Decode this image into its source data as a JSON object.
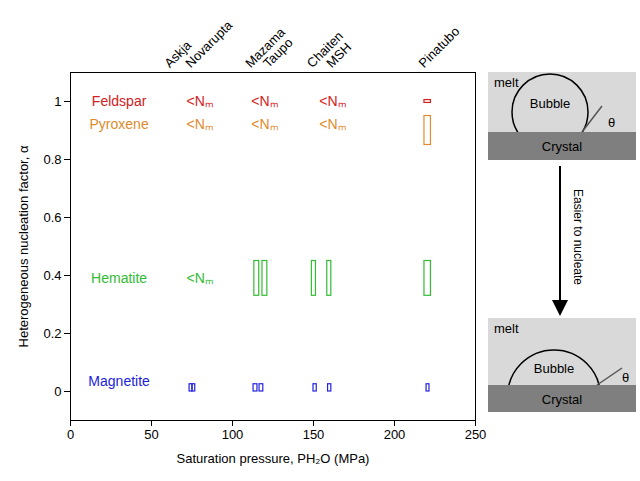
{
  "chart_data": {
    "type": "range_boxes",
    "xlabel": "Saturation pressure, PH₂O (MPa)",
    "ylabel": "Heterogeneous nucleation factor, α",
    "xlim": [
      0,
      250
    ],
    "xticks": [
      0,
      50,
      100,
      150,
      200,
      250
    ],
    "ylim": [
      -0.1,
      1.1
    ],
    "yticks": [
      0,
      0.2,
      0.4,
      0.6,
      0.8,
      1
    ],
    "grid": false,
    "volcanoes": {
      "names": [
        "Askja",
        "Novarupta",
        "Mazama",
        "Taupo",
        "Chaiten",
        "MSH",
        "Pinatubo"
      ],
      "x": [
        60,
        73,
        110,
        121,
        148,
        160,
        217
      ]
    },
    "series": [
      {
        "name": "Feldspar",
        "color": "#d42020",
        "label_x": 30,
        "label_y": 1.0,
        "boxes": [
          {
            "x": [
              218.5,
              222.5
            ],
            "y": [
              0.995,
              1.005
            ]
          }
        ],
        "below_detection": {
          "label": "<Nₘ",
          "x": [
            80,
            120,
            162
          ],
          "y": 1.0
        }
      },
      {
        "name": "Pyroxene",
        "color": "#e08a2c",
        "label_x": 30,
        "label_y": 0.92,
        "boxes": [
          {
            "x": [
              218.5,
              222.5
            ],
            "y": [
              0.85,
              0.95
            ]
          }
        ],
        "below_detection": {
          "label": "<Nₘ",
          "x": [
            80,
            120,
            162
          ],
          "y": 0.92
        }
      },
      {
        "name": "Hematite",
        "color": "#33bb33",
        "label_x": 30,
        "label_y": 0.39,
        "boxes": [
          {
            "x": [
              113.5,
              116.5
            ],
            "y": [
              0.33,
              0.45
            ]
          },
          {
            "x": [
              118.5,
              121.5
            ],
            "y": [
              0.33,
              0.45
            ]
          },
          {
            "x": [
              149,
              151.5
            ],
            "y": [
              0.33,
              0.45
            ]
          },
          {
            "x": [
              158.5,
              161
            ],
            "y": [
              0.33,
              0.45
            ]
          },
          {
            "x": [
              218.5,
              222.5
            ],
            "y": [
              0.33,
              0.45
            ]
          }
        ],
        "below_detection": {
          "label": "<Nₘ",
          "x": [
            80
          ],
          "y": 0.39
        }
      },
      {
        "name": "Magnetite",
        "color": "#2222dd",
        "label_x": 30,
        "label_y": 0.035,
        "boxes": [
          {
            "x": [
              73.5,
              75.3
            ],
            "y": [
              0,
              0.025
            ]
          },
          {
            "x": [
              75.3,
              77
            ],
            "y": [
              0,
              0.025
            ]
          },
          {
            "x": [
              113,
              115.4
            ],
            "y": [
              0,
              0.025
            ]
          },
          {
            "x": [
              116.7,
              119
            ],
            "y": [
              0,
              0.025
            ]
          },
          {
            "x": [
              150,
              152
            ],
            "y": [
              0,
              0.025
            ]
          },
          {
            "x": [
              159,
              161
            ],
            "y": [
              0,
              0.025
            ]
          },
          {
            "x": [
              219.8,
              221.6
            ],
            "y": [
              0,
              0.025
            ]
          }
        ]
      }
    ]
  },
  "schematic": {
    "panels": [
      {
        "melt": "melt",
        "bubble": "Bubble",
        "crystal": "Crystal",
        "angle": "θ"
      },
      {
        "melt": "melt",
        "bubble": "Bubble",
        "crystal": "Crystal",
        "angle": "θ"
      }
    ],
    "arrow_label": "Easier to nucleate"
  }
}
